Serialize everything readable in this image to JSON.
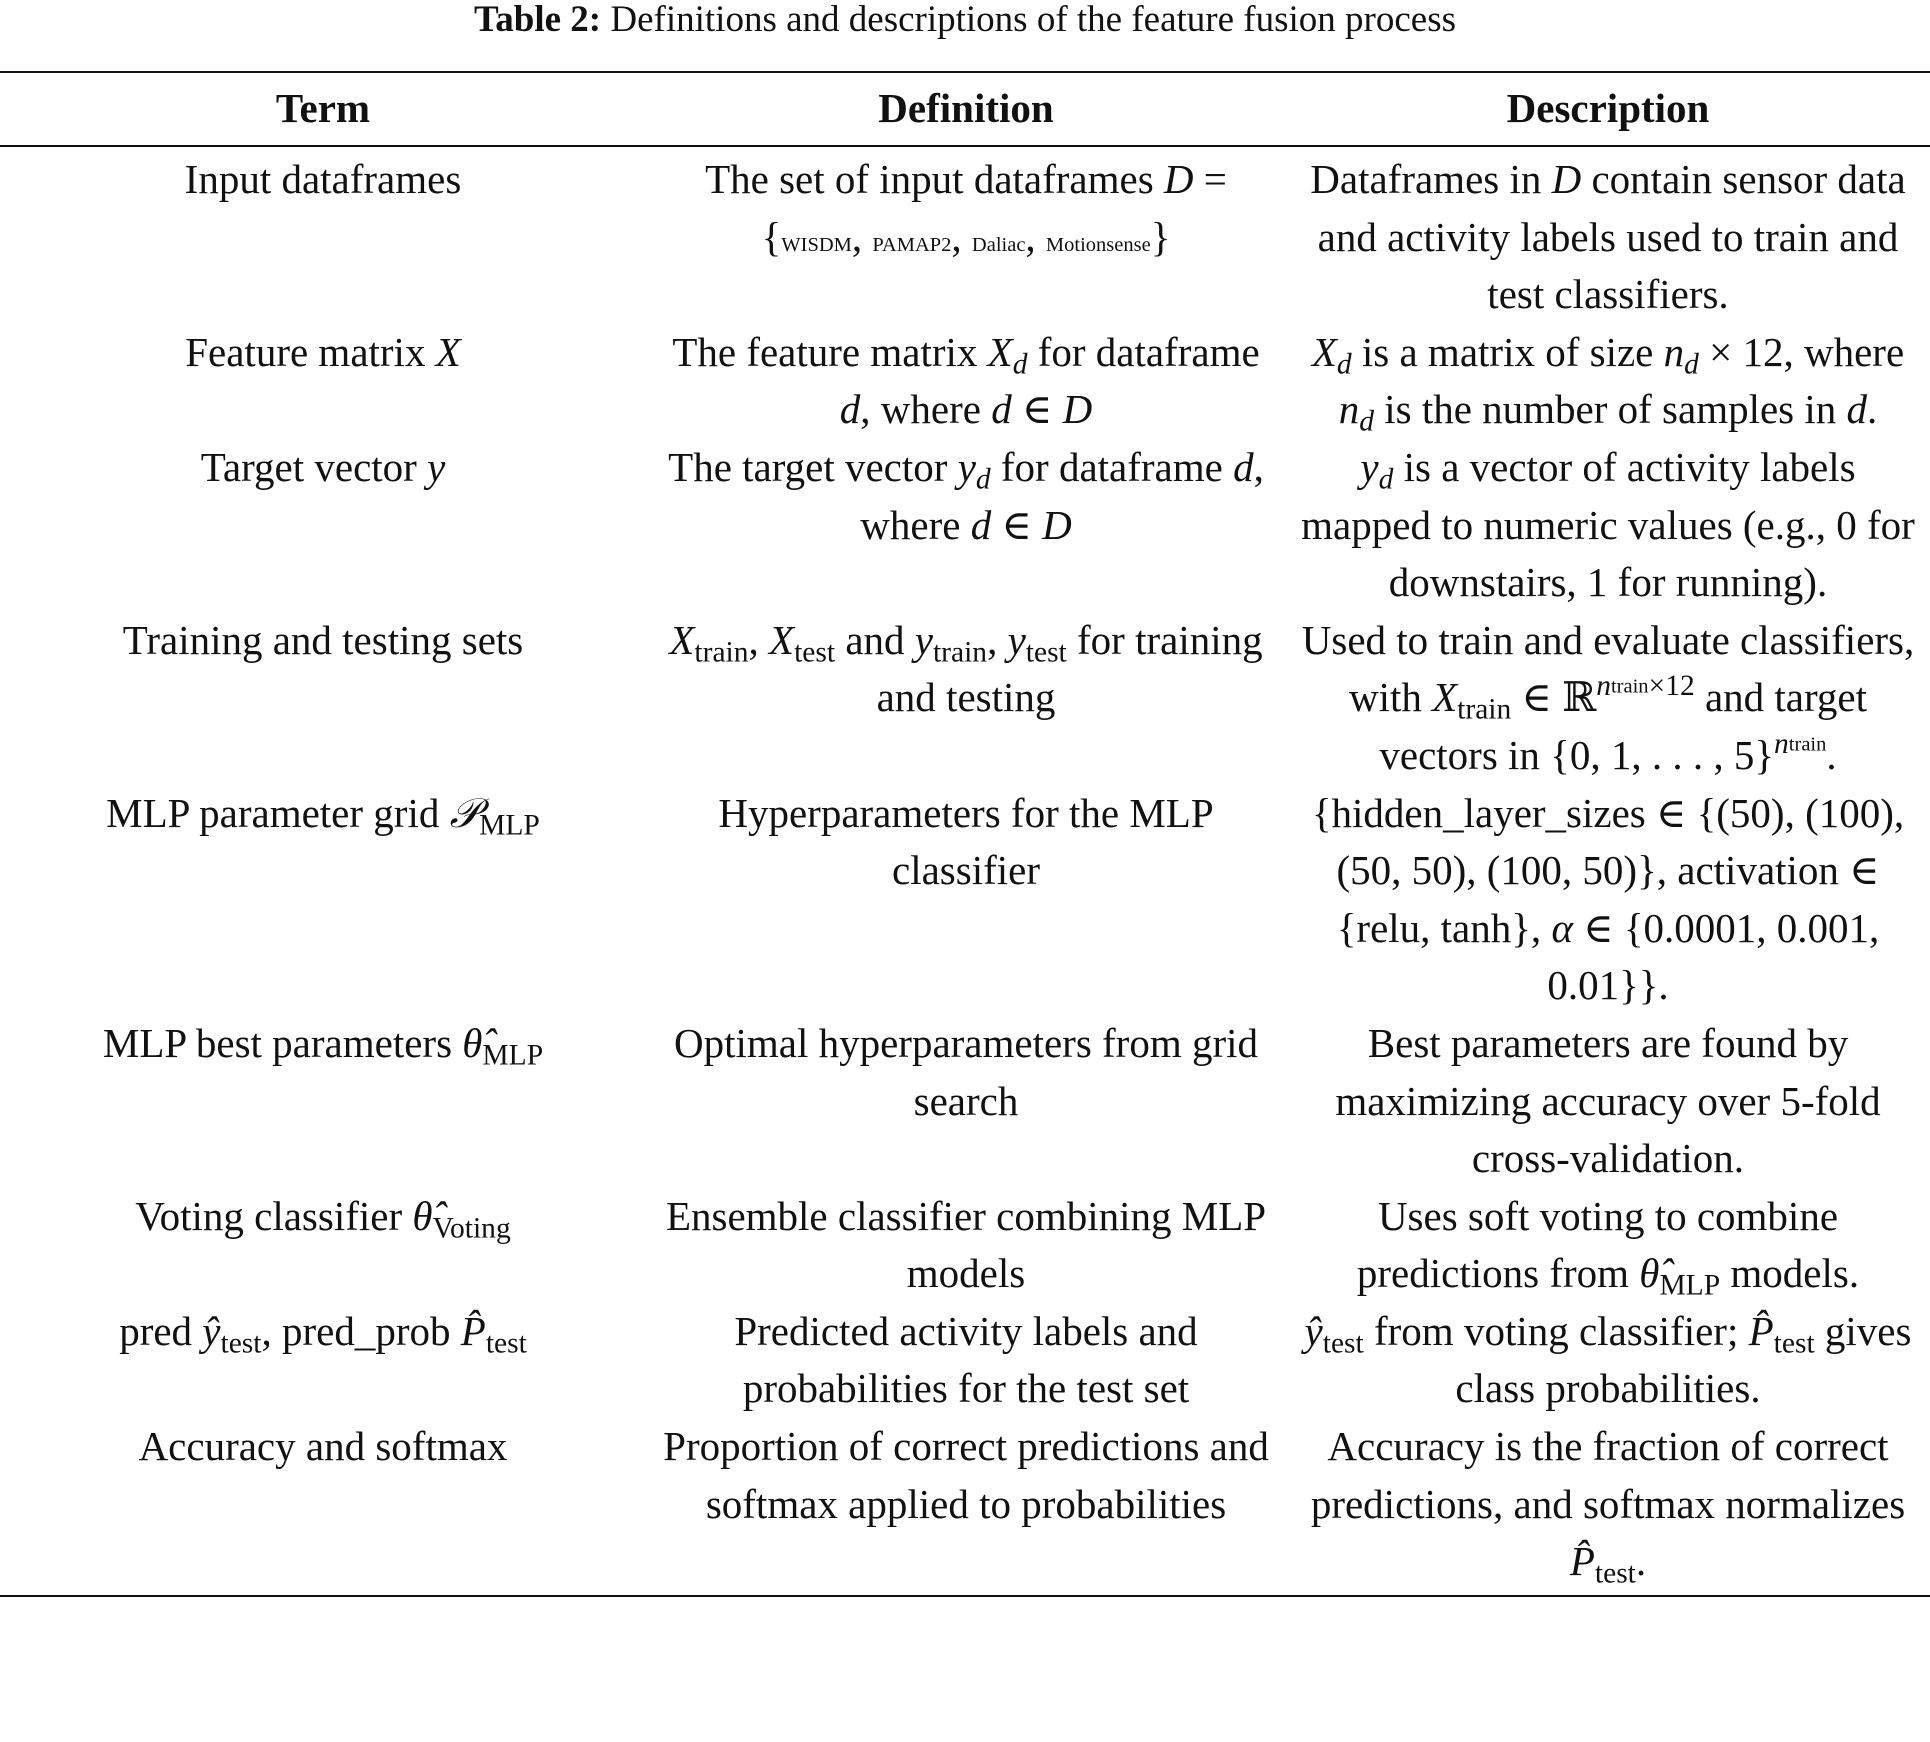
{
  "title": {
    "label": "Table 2:",
    "text": "Definitions and descriptions of the feature fusion process"
  },
  "table": {
    "header": [
      "Term",
      "Definition",
      "Description"
    ],
    "rows": [
      [
        [
          "Input dataframes"
        ],
        [
          "The set of input dataframes ",
          {
            "it": "D"
          },
          " = {",
          {
            "sm": "WISDM"
          },
          ", ",
          {
            "sm": "PAMAP2"
          },
          ", ",
          {
            "sm": "Daliac"
          },
          ", ",
          {
            "sm": "Motionsense"
          },
          "}"
        ],
        [
          "Dataframes in ",
          {
            "it": "D"
          },
          " contain sensor data and activity labels used to train and test classifiers."
        ]
      ],
      [
        [
          "Feature matrix ",
          {
            "it": "X"
          }
        ],
        [
          "The feature matrix ",
          {
            "it": "X"
          },
          {
            "isub": "d"
          },
          " for dataframe ",
          {
            "it": "d"
          },
          ", where ",
          {
            "it": "d"
          },
          " ∈ ",
          {
            "it": "D"
          }
        ],
        [
          {
            "it": "X"
          },
          {
            "isub": "d"
          },
          " is a matrix of size ",
          {
            "it": "n"
          },
          {
            "isub": "d"
          },
          " × 12, where ",
          {
            "it": "n"
          },
          {
            "isub": "d"
          },
          " is the number of samples in ",
          {
            "it": "d"
          },
          "."
        ]
      ],
      [
        [
          "Target vector ",
          {
            "it": "y"
          }
        ],
        [
          "The target vector ",
          {
            "it": "y"
          },
          {
            "isub": "d"
          },
          " for dataframe ",
          {
            "it": "d"
          },
          ", where ",
          {
            "it": "d"
          },
          " ∈ ",
          {
            "it": "D"
          }
        ],
        [
          {
            "it": "y"
          },
          {
            "isub": "d"
          },
          " is a vector of activity labels mapped to numeric values (e.g., 0 for downstairs, 1 for running)."
        ]
      ],
      [
        [
          "Training and testing sets"
        ],
        [
          {
            "it": "X"
          },
          {
            "sub": "train"
          },
          ", ",
          {
            "it": "X"
          },
          {
            "sub": "test"
          },
          " and ",
          {
            "it": "y"
          },
          {
            "sub": "train"
          },
          ", ",
          {
            "it": "y"
          },
          {
            "sub": "test"
          },
          " for training and testing"
        ],
        [
          "Used to train and evaluate classifiers, with ",
          {
            "it": "X"
          },
          {
            "sub": "train"
          },
          " ∈ ℝ",
          {
            "isup": "n"
          },
          {
            "ssup": "train"
          },
          {
            "sup": "×12"
          },
          " and target vectors in {0, 1, . . . , 5}",
          {
            "isup": "n"
          },
          {
            "ssup": "train"
          },
          "."
        ]
      ],
      [
        [
          "MLP parameter grid ",
          {
            "it": "𝒫"
          },
          {
            "sub": "MLP"
          }
        ],
        [
          "Hyperparameters for the MLP classifier"
        ],
        [
          "{hidden_layer_sizes ∈ {(50), (100), (50, 50), (100, 50)}, activation ∈ {relu, tanh}, ",
          {
            "it": "α"
          },
          " ∈ {0.0001, 0.001, 0.01}}."
        ]
      ],
      [
        [
          "MLP best parameters ",
          {
            "it": "θ̂"
          },
          {
            "sub": "MLP"
          }
        ],
        [
          "Optimal hyperparameters from grid search"
        ],
        [
          "Best parameters are found by maximizing accuracy over 5-fold cross-validation."
        ]
      ],
      [
        [
          "Voting classifier ",
          {
            "it": "θ̂"
          },
          {
            "sub": "Voting"
          }
        ],
        [
          "Ensemble classifier combining MLP models"
        ],
        [
          "Uses soft voting to combine predictions from ",
          {
            "it": "θ̂"
          },
          {
            "sub": "MLP"
          },
          " models."
        ]
      ],
      [
        [
          "pred ",
          {
            "it": "ŷ"
          },
          {
            "sub": "test"
          },
          ", pred_prob ",
          {
            "it": "P̂"
          },
          {
            "sub": "test"
          }
        ],
        [
          "Predicted activity labels and probabilities for the test set"
        ],
        [
          {
            "it": "ŷ"
          },
          {
            "sub": "test"
          },
          " from voting classifier; ",
          {
            "it": "P̂"
          },
          {
            "sub": "test"
          },
          " gives class probabilities."
        ]
      ],
      [
        [
          "Accuracy and softmax"
        ],
        [
          "Proportion of correct predictions and softmax applied to probabilities"
        ],
        [
          "Accuracy is the fraction of correct predictions, and softmax normalizes ",
          {
            "it": "P̂"
          },
          {
            "sub": "test"
          },
          "."
        ]
      ]
    ]
  }
}
